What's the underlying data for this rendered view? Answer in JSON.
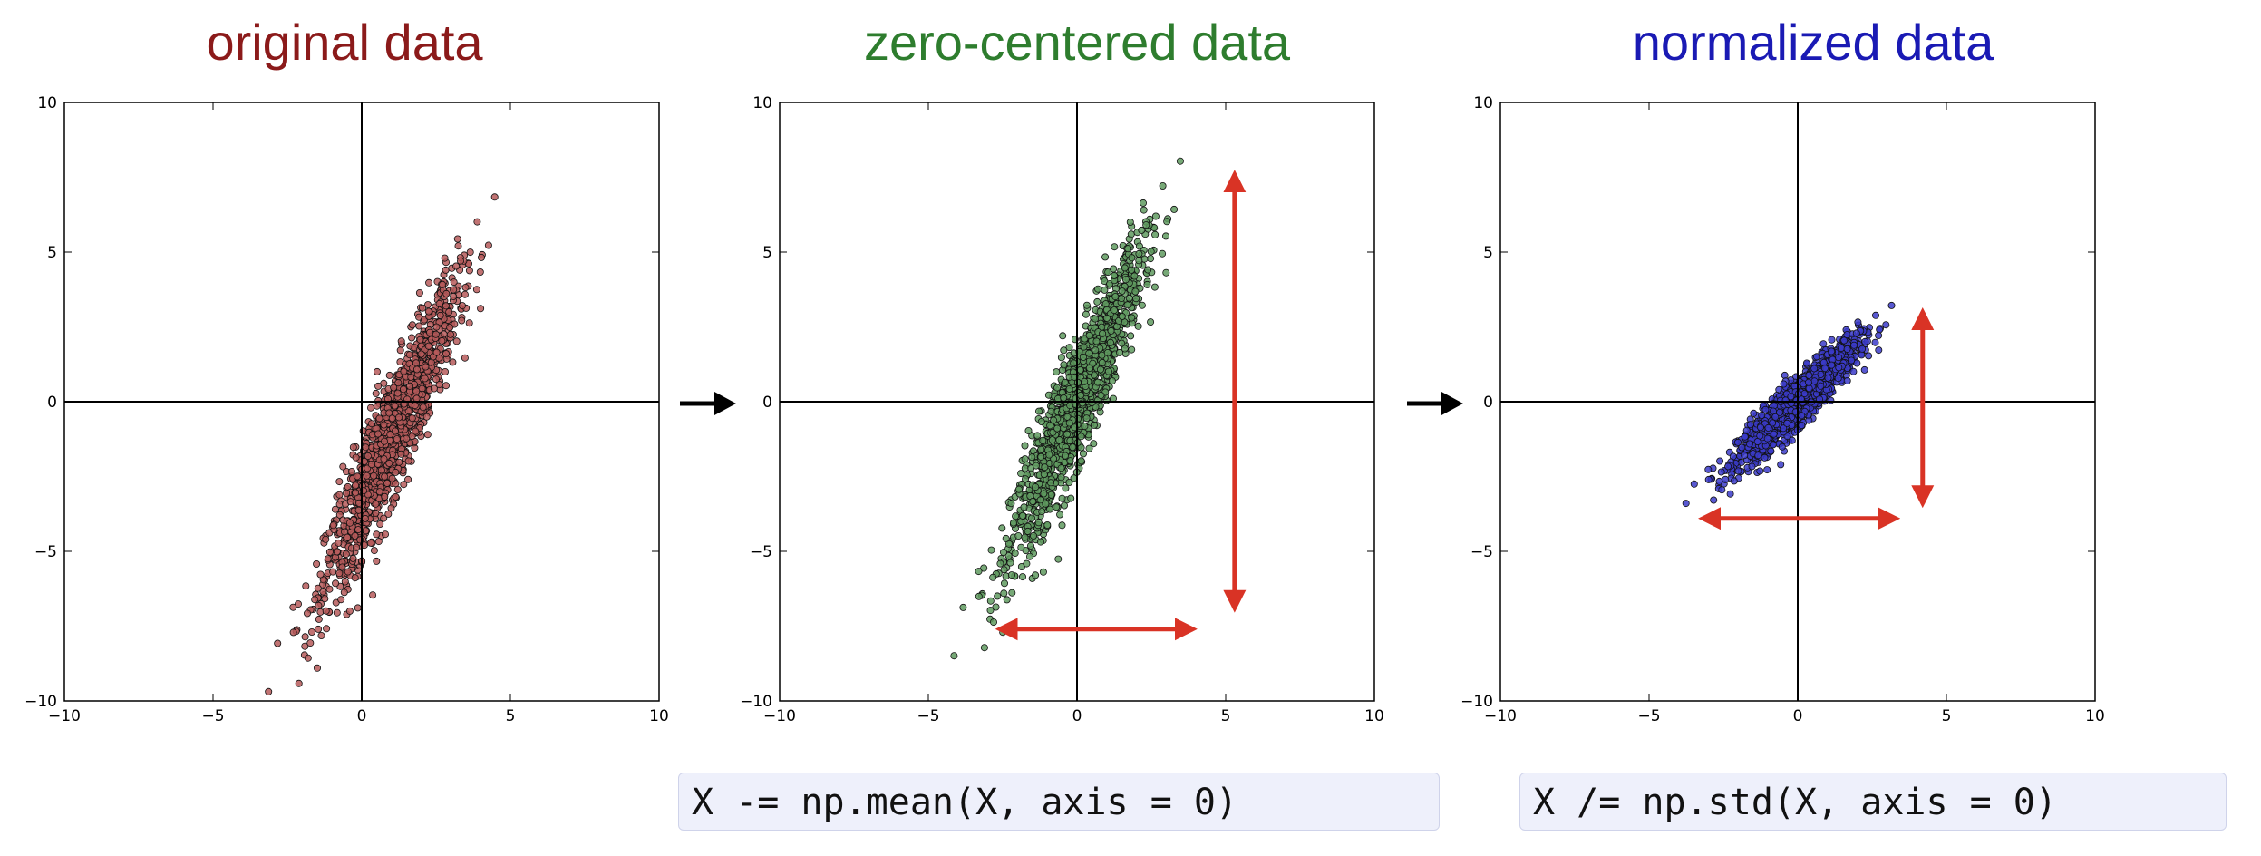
{
  "colors": {
    "original": "#8b1a1a",
    "zero_centered": "#2e7d2e",
    "normalized": "#1a1ab4",
    "arrow": "#d93325",
    "axes": "#000000"
  },
  "flow_arrow_icon": "right-arrow-icon",
  "code": {
    "mean": "X -= np.mean(X, axis = 0)",
    "std": "X /= np.std(X, axis = 0)"
  },
  "chart_data": [
    {
      "type": "scatter",
      "title": "original data",
      "xlim": [
        -10,
        10
      ],
      "ylim": [
        -10,
        10
      ],
      "xticks": [
        "−10",
        "−5",
        "0",
        "5",
        "10"
      ],
      "yticks": [
        "10",
        "5",
        "0",
        "−5",
        "−10"
      ],
      "grid": false,
      "distribution": {
        "mean": [
          1.0,
          -1.2
        ],
        "std": [
          1.1,
          2.5
        ],
        "corr": 0.92,
        "n": 1500
      },
      "range_arrows": []
    },
    {
      "type": "scatter",
      "title": "zero-centered data",
      "xlim": [
        -10,
        10
      ],
      "ylim": [
        -10,
        10
      ],
      "xticks": [
        "−10",
        "−5",
        "0",
        "5",
        "10"
      ],
      "yticks": [
        "10",
        "5",
        "0",
        "−5",
        "−10"
      ],
      "grid": false,
      "distribution": {
        "mean": [
          0,
          0
        ],
        "std": [
          1.1,
          2.5
        ],
        "corr": 0.92,
        "n": 1500
      },
      "range_arrows": [
        {
          "direction": "horizontal",
          "from": [
            -2.6,
            -7.6
          ],
          "to": [
            3.9,
            -7.6
          ]
        },
        {
          "direction": "vertical",
          "from": [
            5.3,
            7.6
          ],
          "to": [
            5.3,
            -6.9
          ]
        }
      ]
    },
    {
      "type": "scatter",
      "title": "normalized data",
      "xlim": [
        -10,
        10
      ],
      "ylim": [
        -10,
        10
      ],
      "xticks": [
        "−10",
        "−5",
        "0",
        "5",
        "10"
      ],
      "yticks": [
        "10",
        "5",
        "0",
        "−5",
        "−10"
      ],
      "grid": false,
      "distribution": {
        "mean": [
          0,
          0
        ],
        "std": [
          1.0,
          1.0
        ],
        "corr": 0.92,
        "n": 1500
      },
      "range_arrows": [
        {
          "direction": "horizontal",
          "from": [
            -3.2,
            -3.9
          ],
          "to": [
            3.3,
            -3.9
          ]
        },
        {
          "direction": "vertical",
          "from": [
            4.2,
            3.0
          ],
          "to": [
            4.2,
            -3.4
          ]
        }
      ]
    }
  ]
}
